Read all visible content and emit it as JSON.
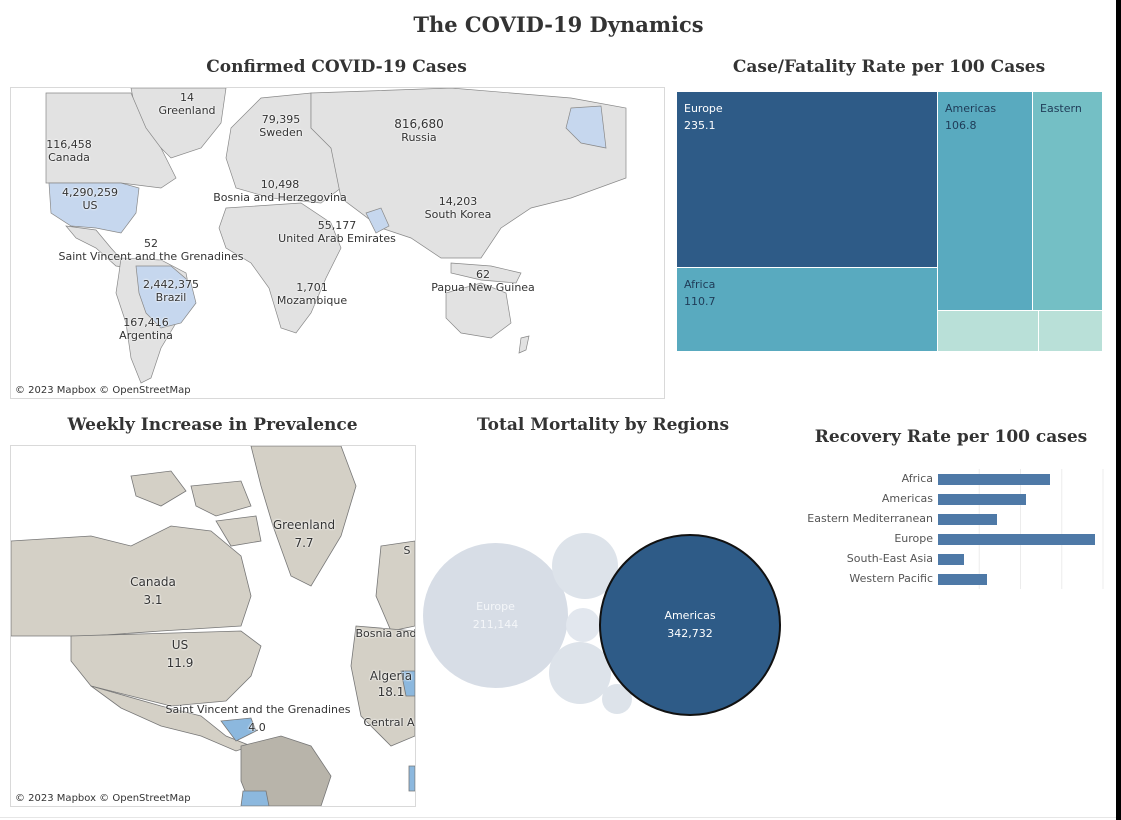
{
  "dashboard": {
    "title": "The COVID-19 Dynamics"
  },
  "confirmed_map": {
    "title": "Confirmed COVID-19 Cases",
    "attribution": "© 2023 Mapbox © OpenStreetMap",
    "labels": [
      {
        "value": "14",
        "name": "Greenland"
      },
      {
        "value": "79,395",
        "name": "Sweden"
      },
      {
        "value": "816,680",
        "name": "Russia"
      },
      {
        "value": "116,458",
        "name": "Canada"
      },
      {
        "value": "4,290,259",
        "name": "US"
      },
      {
        "value": "10,498",
        "name": "Bosnia and Herzegovina"
      },
      {
        "value": "14,203",
        "name": "South Korea"
      },
      {
        "value": "55,177",
        "name": "United Arab Emirates"
      },
      {
        "value": "52",
        "name": "Saint Vincent and the Grenadines"
      },
      {
        "value": "2,442,375",
        "name": "Brazil"
      },
      {
        "value": "1,701",
        "name": "Mozambique"
      },
      {
        "value": "62",
        "name": "Papua New Guinea"
      },
      {
        "value": "167,416",
        "name": "Argentina"
      }
    ]
  },
  "treemap": {
    "title": "Case/Fatality Rate per 100 Cases",
    "cells": [
      {
        "region": "Europe",
        "value": "235.1"
      },
      {
        "region": "Americas",
        "value": "106.8"
      },
      {
        "region": "Eastern",
        "value": ""
      },
      {
        "region": "Africa",
        "value": "110.7"
      }
    ],
    "colors": {
      "dark": "#2e5b87",
      "mid": "#59aabf",
      "light": "#74bfc5",
      "pale": "#b9e0d8"
    }
  },
  "weekly_map": {
    "title": "Weekly Increase in Prevalence",
    "attribution": "© 2023 Mapbox © OpenStreetMap",
    "labels": [
      {
        "value": "7.7",
        "name": "Greenland"
      },
      {
        "value": "3.1",
        "name": "Canada"
      },
      {
        "value": "11.9",
        "name": "US"
      },
      {
        "value": "",
        "name": "Bosnia and"
      },
      {
        "value": "18.1",
        "name": "Algeria"
      },
      {
        "value": "4.0",
        "name": "Saint Vincent and the Grenadines"
      },
      {
        "value": "",
        "name": "Central A"
      },
      {
        "value": "",
        "name": "S"
      }
    ]
  },
  "bubbles": {
    "title": "Total Mortality by Regions",
    "items": [
      {
        "region": "Europe",
        "value": "211,144"
      },
      {
        "region": "Americas",
        "value": "342,732"
      }
    ]
  },
  "chart_data": {
    "type": "bar",
    "title": "Recovery Rate per 100 cases",
    "categories": [
      "Africa",
      "Americas",
      "Eastern Mediterranean",
      "Europe",
      "South-East Asia",
      "Western Pacific"
    ],
    "values": [
      57,
      45,
      30,
      80,
      13,
      25
    ],
    "xlim": [
      0,
      84
    ],
    "grid": true
  }
}
